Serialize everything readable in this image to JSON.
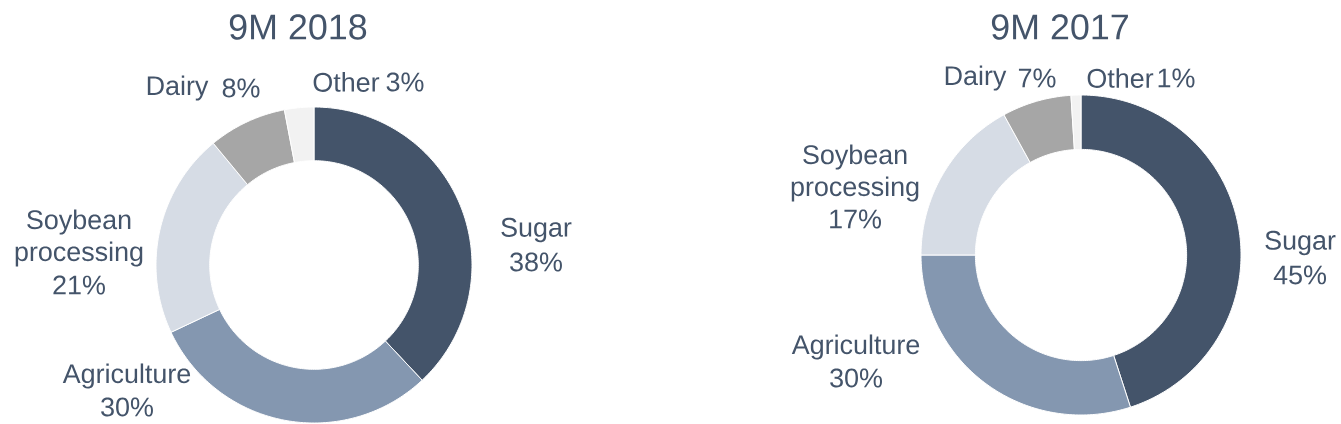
{
  "chart_data": [
    {
      "type": "donut",
      "title": "9M 2018",
      "categories": [
        "Sugar",
        "Agriculture",
        "Soybean processing",
        "Dairy",
        "Other"
      ],
      "values": [
        38,
        30,
        21,
        8,
        3
      ],
      "value_labels": [
        "38%",
        "30%",
        "21%",
        "8%",
        "3%"
      ],
      "colors": [
        "#44546a",
        "#8497b0",
        "#d6dce5",
        "#a6a6a6",
        "#f2f2f2"
      ]
    },
    {
      "type": "donut",
      "title": "9M 2017",
      "categories": [
        "Sugar",
        "Agriculture",
        "Soybean processing",
        "Dairy",
        "Other"
      ],
      "values": [
        45,
        30,
        17,
        7,
        1
      ],
      "value_labels": [
        "45%",
        "30%",
        "17%",
        "7%",
        "1%"
      ],
      "colors": [
        "#44546a",
        "#8497b0",
        "#d6dce5",
        "#a6a6a6",
        "#f2f2f2"
      ]
    }
  ]
}
